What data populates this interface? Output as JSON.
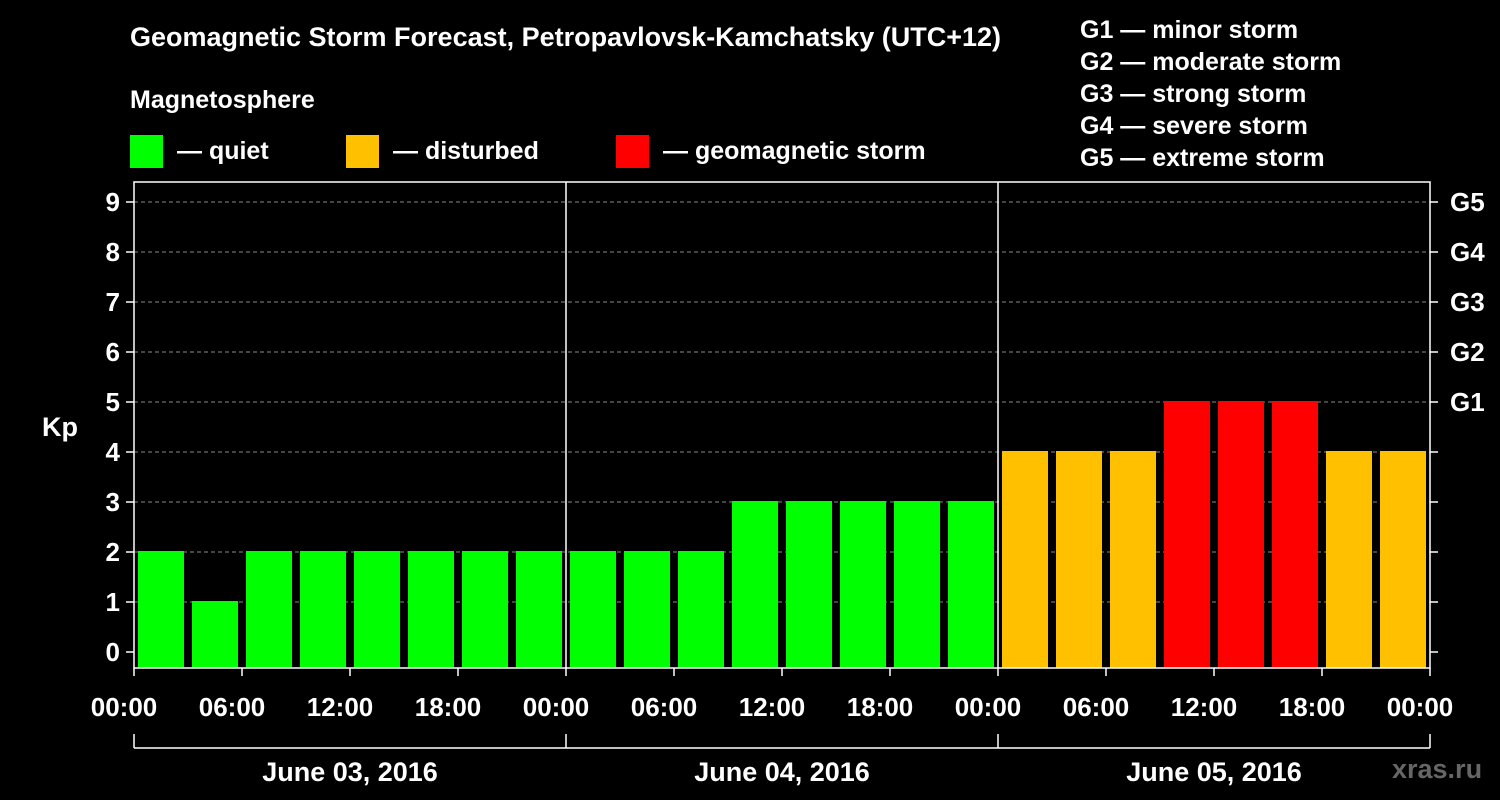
{
  "title": "Geomagnetic Storm Forecast, Petropavlovsk-Kamchatsky (UTC+12)",
  "subtitle": "Magnetosphere",
  "legend": [
    {
      "label": "— quiet",
      "color": "#00ff00"
    },
    {
      "label": "— disturbed",
      "color": "#ffc000"
    },
    {
      "label": "— geomagnetic storm",
      "color": "#ff0000"
    }
  ],
  "storm_scale": [
    "G1 — minor storm",
    "G2 — moderate storm",
    "G3 — strong storm",
    "G4 — severe storm",
    "G5 — extreme storm"
  ],
  "watermark": "xras.ru",
  "chart_data": {
    "type": "bar",
    "ylabel": "Kp",
    "ylim": [
      0,
      9.5
    ],
    "yticks": [
      0,
      1,
      2,
      3,
      4,
      5,
      6,
      7,
      8,
      9
    ],
    "right_ticks": [
      {
        "value": 5,
        "label": "G1"
      },
      {
        "value": 6,
        "label": "G2"
      },
      {
        "value": 7,
        "label": "G3"
      },
      {
        "value": 8,
        "label": "G4"
      },
      {
        "value": 9,
        "label": "G5"
      }
    ],
    "x_tick_labels": [
      "00:00",
      "06:00",
      "12:00",
      "18:00",
      "00:00",
      "06:00",
      "12:00",
      "18:00",
      "00:00",
      "06:00",
      "12:00",
      "18:00",
      "00:00"
    ],
    "days": [
      "June 03, 2016",
      "June 04, 2016",
      "June 05, 2016"
    ],
    "values": [
      2,
      1,
      2,
      2,
      2,
      2,
      2,
      2,
      2,
      2,
      2,
      3,
      3,
      3,
      3,
      3,
      4,
      4,
      4,
      5,
      5,
      5,
      4,
      4
    ],
    "levels": [
      "quiet",
      "quiet",
      "quiet",
      "quiet",
      "quiet",
      "quiet",
      "quiet",
      "quiet",
      "quiet",
      "quiet",
      "quiet",
      "quiet",
      "quiet",
      "quiet",
      "quiet",
      "quiet",
      "disturbed",
      "disturbed",
      "disturbed",
      "storm",
      "storm",
      "storm",
      "disturbed",
      "disturbed"
    ],
    "colors": {
      "quiet": "#00ff00",
      "disturbed": "#ffc000",
      "storm": "#ff0000"
    },
    "interval_hours": 3,
    "grid": true
  }
}
